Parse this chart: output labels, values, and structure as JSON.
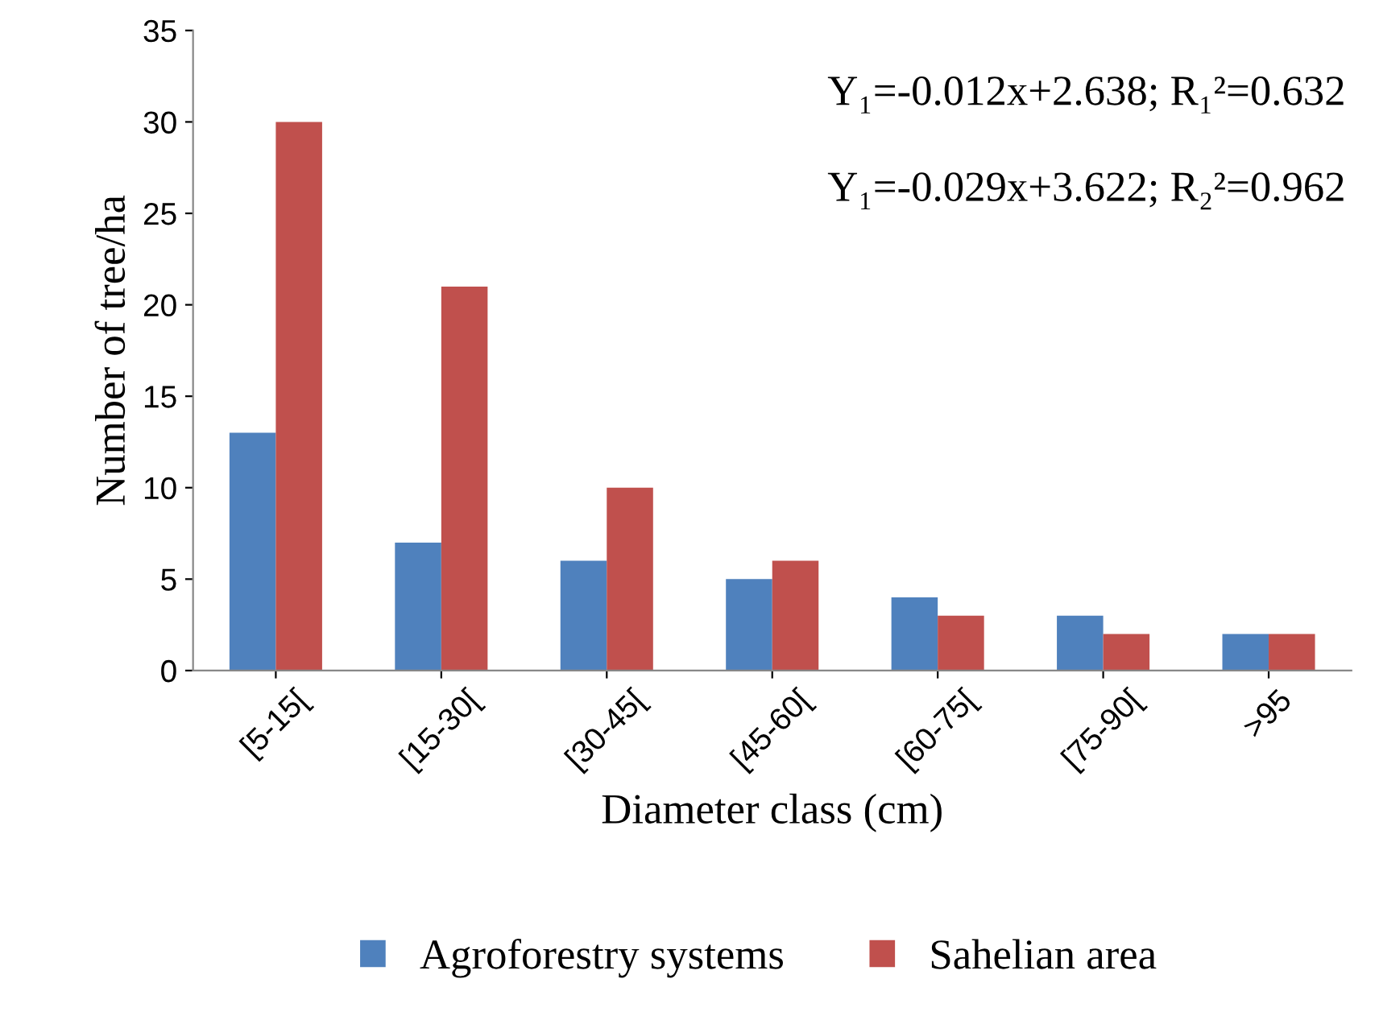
{
  "chart_data": {
    "type": "bar",
    "xlabel": "Diameter class (cm)",
    "ylabel": "Number of tree/ha",
    "categories": [
      "[5-15[",
      "[15-30[",
      "[30-45[",
      "[45-60[",
      "[60-75[",
      "[75-90[",
      ">95"
    ],
    "series": [
      {
        "name": "Agroforestry systems",
        "color": "#4f81bd",
        "values": [
          13,
          7,
          6,
          5,
          4,
          3,
          2
        ]
      },
      {
        "name": "Sahelian area",
        "color": "#c0504d",
        "values": [
          30,
          21,
          10,
          6,
          3,
          2,
          2
        ]
      }
    ],
    "ylim": [
      0,
      35
    ],
    "yticks": [
      0,
      5,
      10,
      15,
      20,
      25,
      30,
      35
    ],
    "annotations": [
      "Y₁=-0.012x+2.638; R₁²=0.632",
      "Y₁=-0.029x+3.622; R₂²=0.962"
    ],
    "legend": "bottom",
    "grid": false
  }
}
